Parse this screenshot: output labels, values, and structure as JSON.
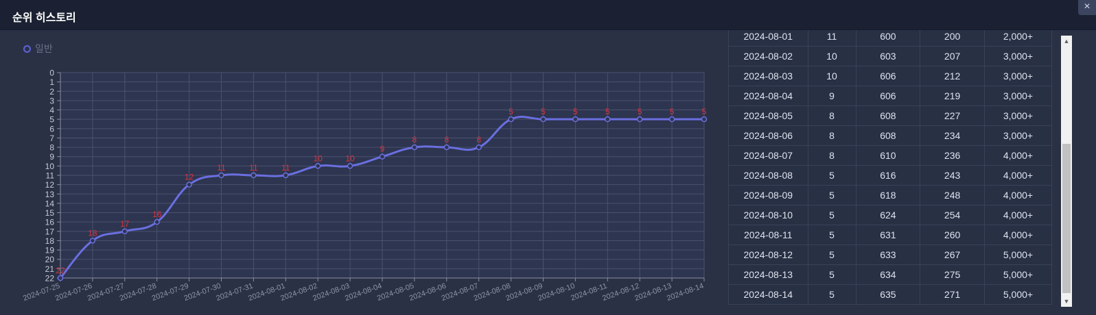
{
  "window": {
    "title": "순위 히스토리",
    "close_label": "×"
  },
  "legend": {
    "label": "일반",
    "color": "#5e63d8"
  },
  "chart_data": {
    "type": "line",
    "x": [
      "2024-07-25",
      "2024-07-26",
      "2024-07-27",
      "2024-07-28",
      "2024-07-29",
      "2024-07-30",
      "2024-07-31",
      "2024-08-01",
      "2024-08-02",
      "2024-08-03",
      "2024-08-04",
      "2024-08-05",
      "2024-08-06",
      "2024-08-07",
      "2024-08-08",
      "2024-08-09",
      "2024-08-10",
      "2024-08-11",
      "2024-08-12",
      "2024-08-13",
      "2024-08-14"
    ],
    "series": [
      {
        "name": "일반",
        "values": [
          22,
          18,
          17,
          16,
          12,
          11,
          11,
          11,
          10,
          10,
          9,
          8,
          8,
          8,
          5,
          5,
          5,
          5,
          5,
          5,
          5
        ]
      }
    ],
    "y_ticks": [
      0,
      1,
      2,
      3,
      4,
      5,
      6,
      7,
      8,
      9,
      10,
      11,
      12,
      13,
      14,
      15,
      16,
      17,
      18,
      19,
      20,
      21,
      22
    ],
    "ylim": [
      22,
      0
    ],
    "y_inverted": true,
    "grid": true,
    "line_color": "#6b6fe0",
    "label_color": "#e0313d"
  },
  "table": {
    "rows": [
      [
        "2024-08-01",
        "11",
        "600",
        "200",
        "2,000+"
      ],
      [
        "2024-08-02",
        "10",
        "603",
        "207",
        "3,000+"
      ],
      [
        "2024-08-03",
        "10",
        "606",
        "212",
        "3,000+"
      ],
      [
        "2024-08-04",
        "9",
        "606",
        "219",
        "3,000+"
      ],
      [
        "2024-08-05",
        "8",
        "608",
        "227",
        "3,000+"
      ],
      [
        "2024-08-06",
        "8",
        "608",
        "234",
        "3,000+"
      ],
      [
        "2024-08-07",
        "8",
        "610",
        "236",
        "4,000+"
      ],
      [
        "2024-08-08",
        "5",
        "616",
        "243",
        "4,000+"
      ],
      [
        "2024-08-09",
        "5",
        "618",
        "248",
        "4,000+"
      ],
      [
        "2024-08-10",
        "5",
        "624",
        "254",
        "4,000+"
      ],
      [
        "2024-08-11",
        "5",
        "631",
        "260",
        "4,000+"
      ],
      [
        "2024-08-12",
        "5",
        "633",
        "267",
        "5,000+"
      ],
      [
        "2024-08-13",
        "5",
        "634",
        "275",
        "5,000+"
      ],
      [
        "2024-08-14",
        "5",
        "635",
        "271",
        "5,000+"
      ]
    ]
  },
  "scrollbar": {
    "up_icon": "▲",
    "down_icon": "▼"
  }
}
